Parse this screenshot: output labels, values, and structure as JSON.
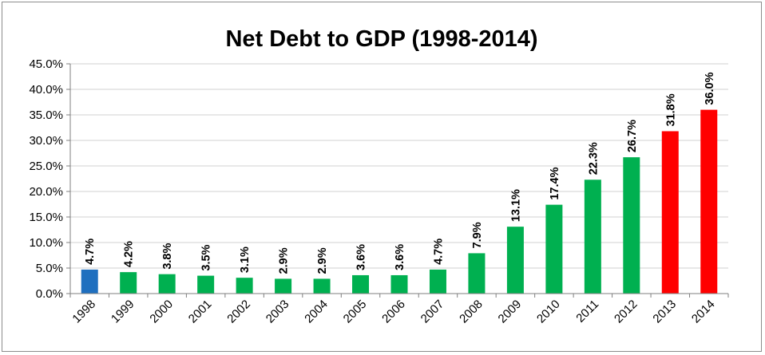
{
  "chart_data": {
    "type": "bar",
    "title": "Net Debt to GDP (1998-2014)",
    "xlabel": "",
    "ylabel": "",
    "ylim": [
      0,
      45
    ],
    "yticks": [
      0,
      5,
      10,
      15,
      20,
      25,
      30,
      35,
      40,
      45
    ],
    "ytick_labels": [
      "0.0%",
      "5.0%",
      "10.0%",
      "15.0%",
      "20.0%",
      "25.0%",
      "30.0%",
      "35.0%",
      "40.0%",
      "45.0%"
    ],
    "grid": true,
    "legend": "none",
    "categories": [
      "1998",
      "1999",
      "2000",
      "2001",
      "2002",
      "2003",
      "2004",
      "2005",
      "2006",
      "2007",
      "2008",
      "2009",
      "2010",
      "2011",
      "2012",
      "2013",
      "2014"
    ],
    "values": [
      4.7,
      4.2,
      3.8,
      3.5,
      3.1,
      2.9,
      2.9,
      3.6,
      3.6,
      4.7,
      7.9,
      13.1,
      17.4,
      22.3,
      26.7,
      31.8,
      36.0
    ],
    "data_labels": [
      "4.7%",
      "4.2%",
      "3.8%",
      "3.5%",
      "3.1%",
      "2.9%",
      "2.9%",
      "3.6%",
      "3.6%",
      "4.7%",
      "7.9%",
      "13.1%",
      "17.4%",
      "22.3%",
      "26.7%",
      "31.8%",
      "36.0%"
    ],
    "bar_colors": [
      "#1f6fbf",
      "#00b050",
      "#00b050",
      "#00b050",
      "#00b050",
      "#00b050",
      "#00b050",
      "#00b050",
      "#00b050",
      "#00b050",
      "#00b050",
      "#00b050",
      "#00b050",
      "#00b050",
      "#00b050",
      "#ff0000",
      "#ff0000"
    ],
    "colors": {
      "grid": "#d0d0d0",
      "axis": "#7f7f7f"
    }
  }
}
